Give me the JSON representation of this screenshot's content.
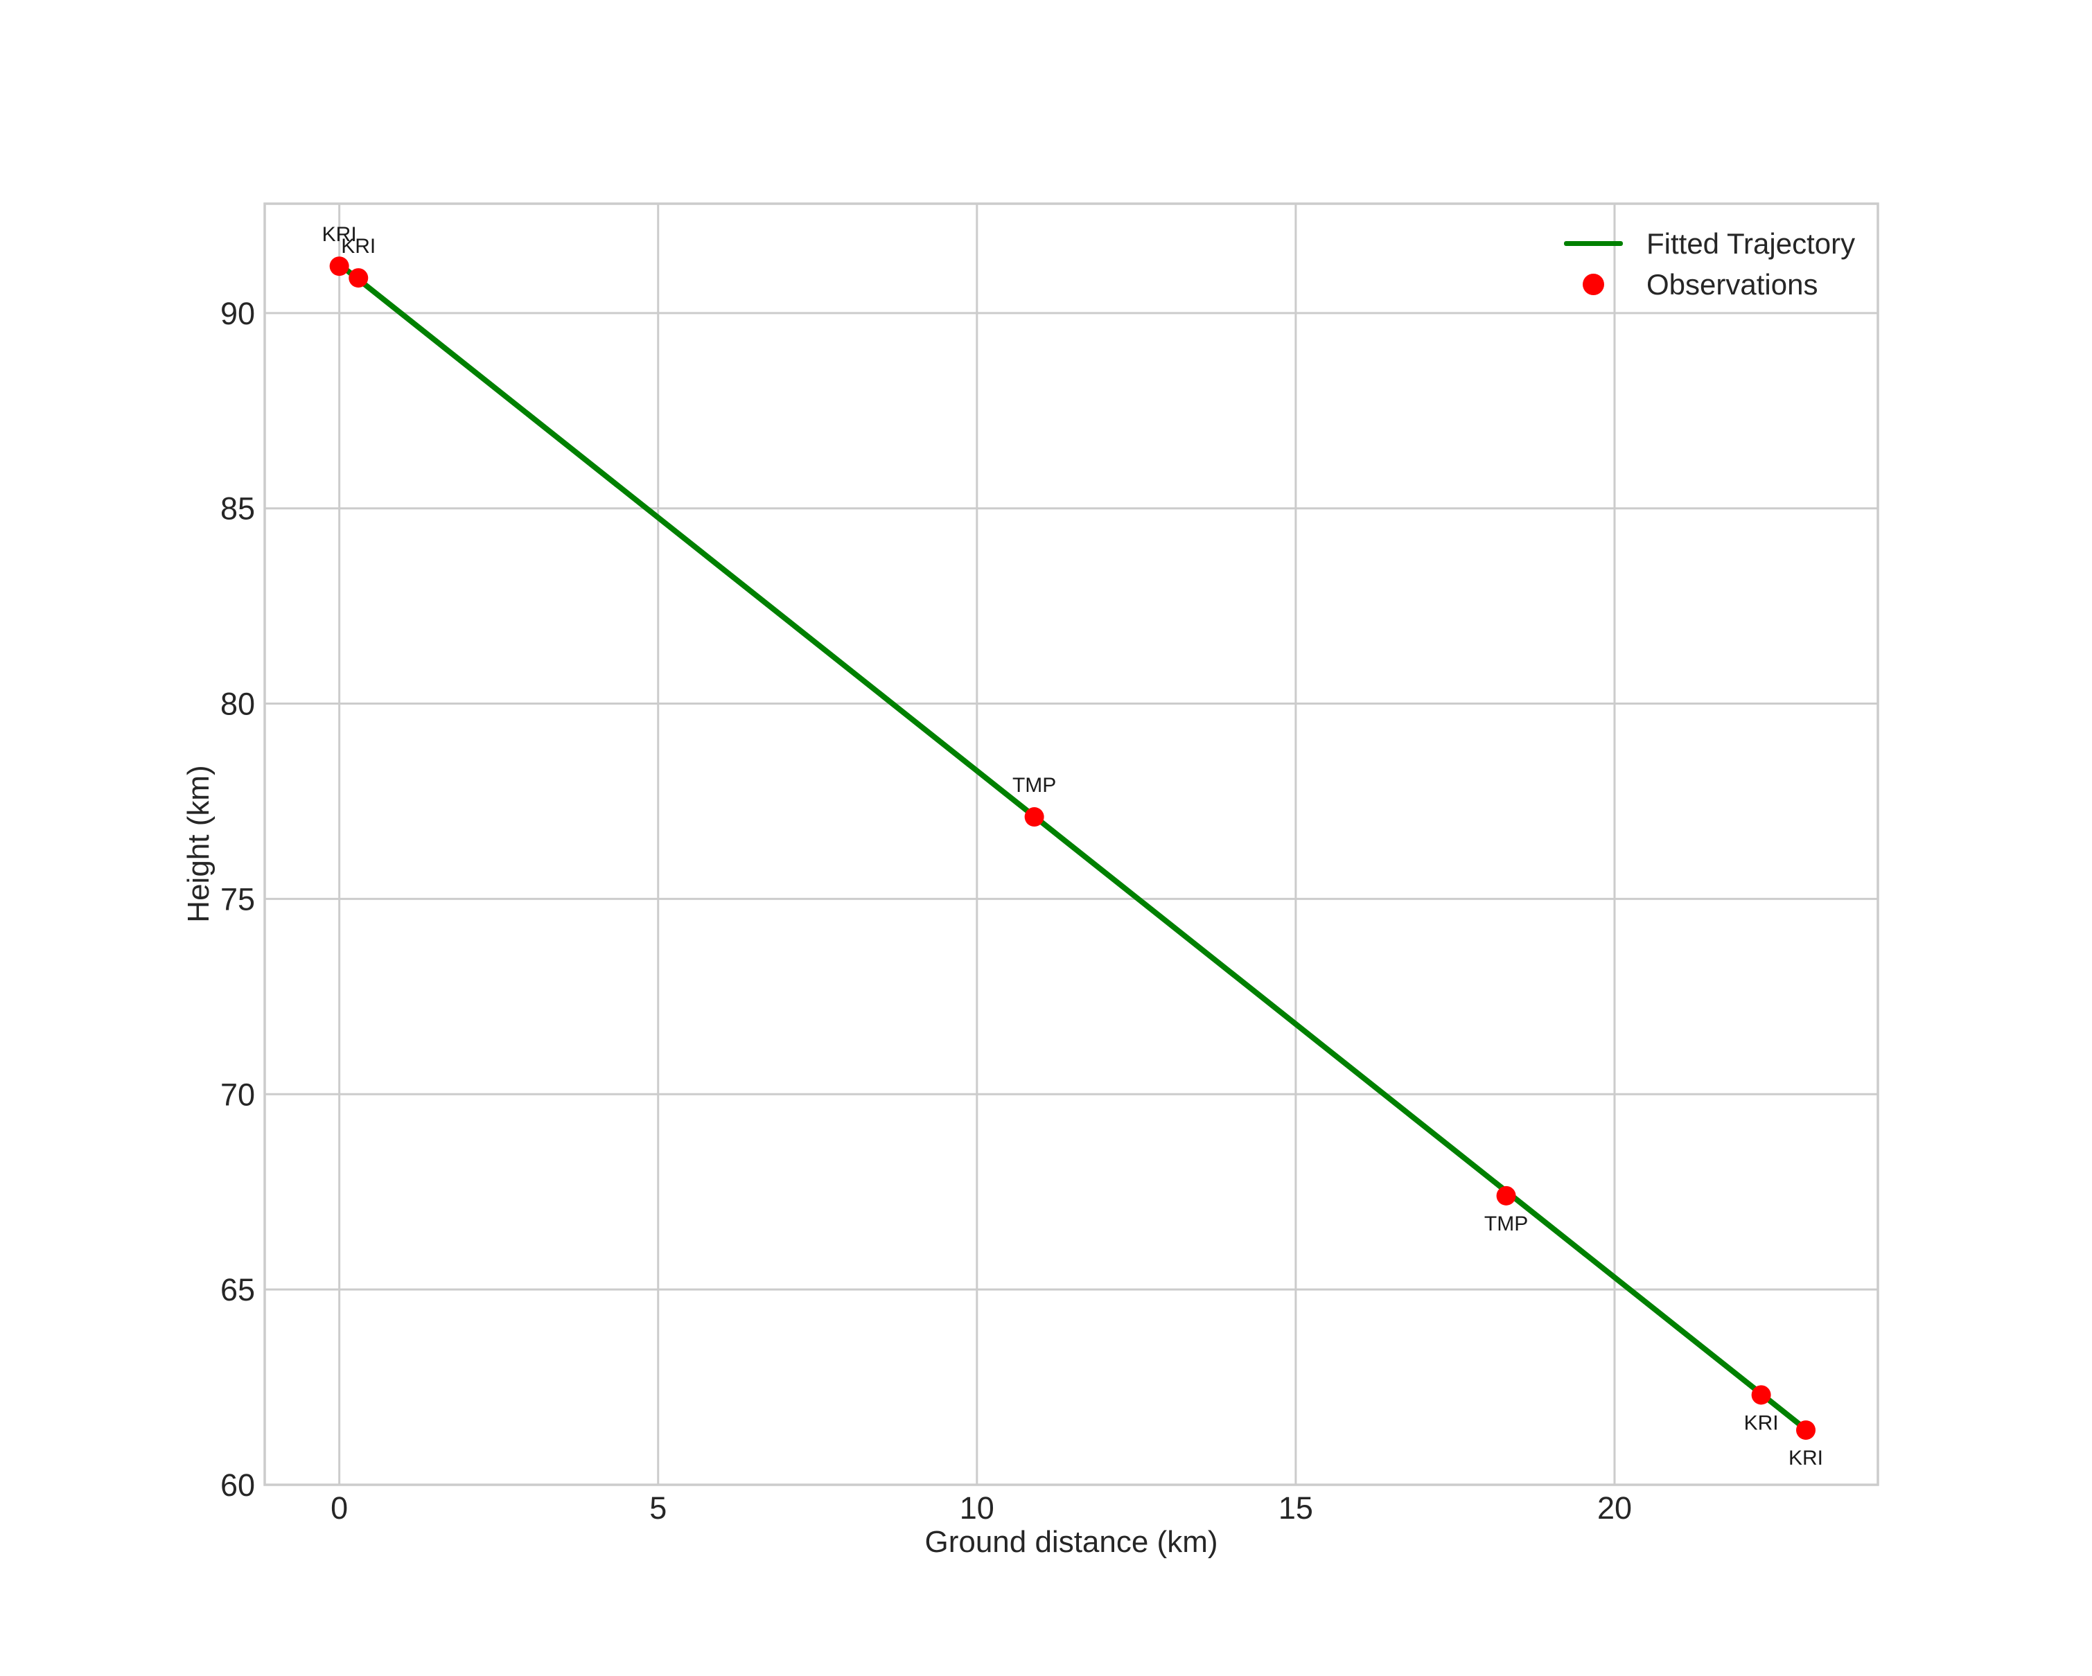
{
  "chart_data": {
    "type": "scatter",
    "title": "",
    "xlabel": "Ground distance (km)",
    "ylabel": "Height (km)",
    "xlim": [
      -1.17,
      24.13
    ],
    "ylim": [
      60.0,
      92.8
    ],
    "xticks": [
      0,
      5,
      10,
      15,
      20
    ],
    "yticks": [
      60,
      65,
      70,
      75,
      80,
      85,
      90
    ],
    "grid": true,
    "legend_position": "upper right",
    "legend": [
      {
        "label": "Fitted Trajectory",
        "marker": "line",
        "color": "#008000"
      },
      {
        "label": "Observations",
        "marker": "dot",
        "color": "#ff0000"
      }
    ],
    "fitted_line": {
      "name": "Fitted Trajectory",
      "color": "#008000",
      "points": [
        [
          0.0,
          91.25
        ],
        [
          23.0,
          61.42
        ]
      ]
    },
    "observations": {
      "name": "Observations",
      "color": "#ff0000",
      "points": [
        {
          "x": 0.0,
          "y": 91.2,
          "station": "KRI",
          "label_pos": "above"
        },
        {
          "x": 0.3,
          "y": 90.9,
          "station": "KRI",
          "label_pos": "above"
        },
        {
          "x": 10.9,
          "y": 77.1,
          "station": "TMP",
          "label_pos": "above"
        },
        {
          "x": 18.3,
          "y": 67.4,
          "station": "TMP",
          "label_pos": "below"
        },
        {
          "x": 22.3,
          "y": 62.3,
          "station": "KRI",
          "label_pos": "below"
        },
        {
          "x": 23.0,
          "y": 61.4,
          "station": "KRI",
          "label_pos": "below"
        }
      ]
    },
    "colors": {
      "grid": "#cccccc",
      "frame": "#cccccc",
      "tick_text": "#262626",
      "annotation_text": "#1a1a1a",
      "background": "#ffffff"
    }
  }
}
